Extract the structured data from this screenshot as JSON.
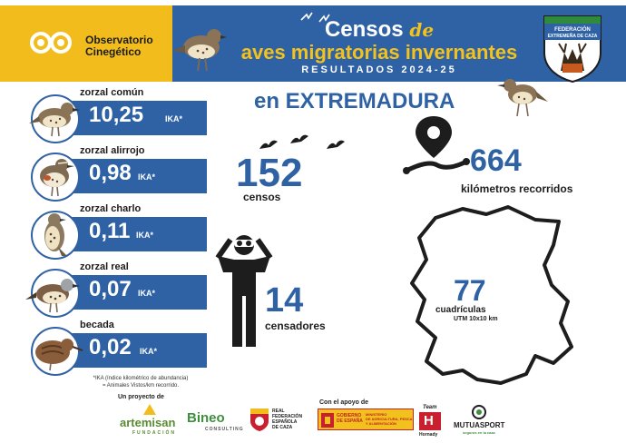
{
  "header": {
    "org_line1": "Observatorio",
    "org_line2": "Cinegético",
    "title_main": "Censos",
    "title_de": "de",
    "title_line2": "aves migratorias invernantes",
    "title_line3": "RESULTADOS 2024-25",
    "federation_line1": "FEDERACIÓN",
    "federation_line2": "EXTREMEÑA DE CAZA",
    "brand_yellow": "#f2bd1c",
    "brand_blue": "#2f62a4"
  },
  "species": [
    {
      "name": "zorzal común",
      "value": "10,25",
      "unit": "IKA*",
      "icon": "song-thrush-icon"
    },
    {
      "name": "zorzal alirrojo",
      "value": "0,98",
      "unit": "IKA*",
      "icon": "redwing-icon"
    },
    {
      "name": "zorzal charlo",
      "value": "0,11",
      "unit": "IKA*",
      "icon": "mistle-thrush-icon"
    },
    {
      "name": "zorzal real",
      "value": "0,07",
      "unit": "IKA*",
      "icon": "fieldfare-icon"
    },
    {
      "name": "becada",
      "value": "0,02",
      "unit": "IKA*",
      "icon": "woodcock-icon"
    }
  ],
  "footnote": {
    "line1": "*IKA (índice kilométrico de abundancia)",
    "line2": "= Animales Vistos/km recorrido."
  },
  "stats": {
    "region": "en EXTREMADURA",
    "censos_value": "152",
    "censos_label": "censos",
    "km_value": "664",
    "km_label": "kilómetros recorridos",
    "censadores_value": "14",
    "censadores_label": "censadores",
    "cuadriculas_value": "77",
    "cuadriculas_label": "cuadrículas",
    "cuadriculas_sub": "UTM 10x10 km"
  },
  "footer": {
    "project_label": "Un proyecto de",
    "support_label": "Con el apoyo de",
    "artemisan": "artemisan",
    "artemisan_sub": "FUNDACIÓN",
    "bineo": "Bineo",
    "bineo_sub": "CONSULTING",
    "rfec_line1": "REAL",
    "rfec_line2": "FEDERACIÓN",
    "rfec_line3": "ESPAÑOLA",
    "rfec_line4": "DE CAZA",
    "gov_line1": "GOBIERNO",
    "gov_line2": "DE ESPAÑA",
    "ministry_line1": "MINISTERIO",
    "ministry_line2": "DE AGRICULTURA, PESCA",
    "ministry_line3": "Y ALIMENTACIÓN",
    "hornady": "Hornady",
    "team": "Team",
    "mutuasport": "MUTUASPORT",
    "mutuasport_sub": "seguros en la caza"
  }
}
